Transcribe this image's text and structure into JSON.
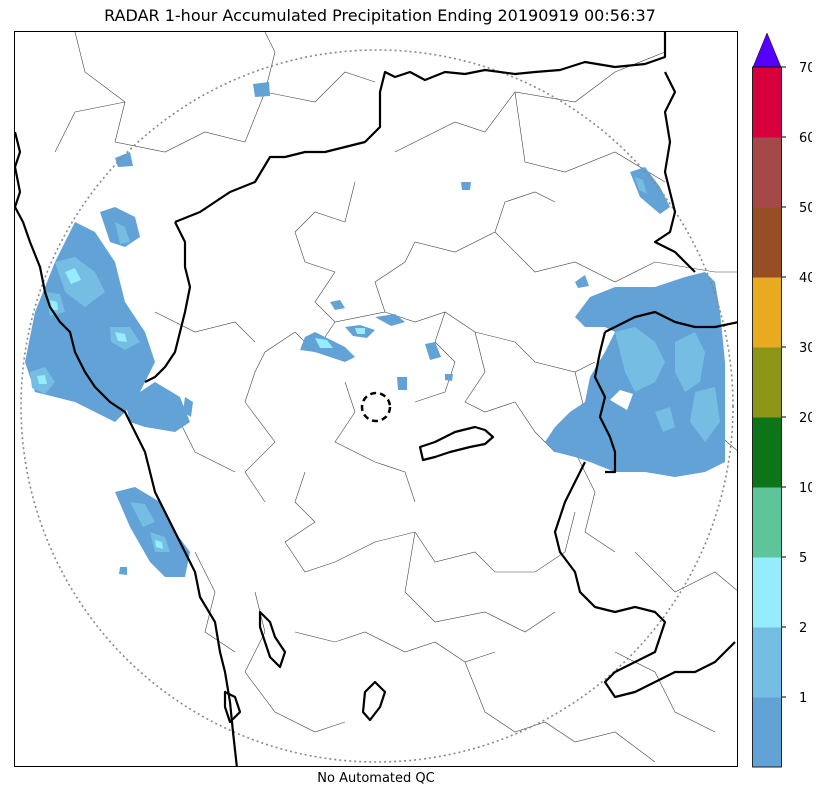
{
  "title": "RADAR 1-hour Accumulated Precipitation Ending 20190919 00:56:37",
  "footer_note": "No Automated QC",
  "map_features": {
    "radar_range_ring": "dotted-grey-circle",
    "radar_site_marker": "dashed-black-circle",
    "state_boundaries": "thick-black-lines",
    "district_boundaries": "thin-grey-lines"
  },
  "colorbar": {
    "extend": "max",
    "extend_color": "#5500ff",
    "bins": [
      {
        "color": "#62a2d6",
        "label": ""
      },
      {
        "color": "#75bde2",
        "label": "1"
      },
      {
        "color": "#95ecfd",
        "label": "2"
      },
      {
        "color": "#5ec49a",
        "label": "5"
      },
      {
        "color": "#0e7418",
        "label": "10"
      },
      {
        "color": "#8b9516",
        "label": "20"
      },
      {
        "color": "#e8aa1e",
        "label": "30"
      },
      {
        "color": "#964f25",
        "label": "40"
      },
      {
        "color": "#a54848",
        "label": "50"
      },
      {
        "color": "#d7003f",
        "label": "60"
      }
    ],
    "top_label": "70"
  },
  "colors": {
    "light_blue": "#62a2d6",
    "sky_blue": "#75bde2",
    "cyan": "#95ecfd"
  }
}
